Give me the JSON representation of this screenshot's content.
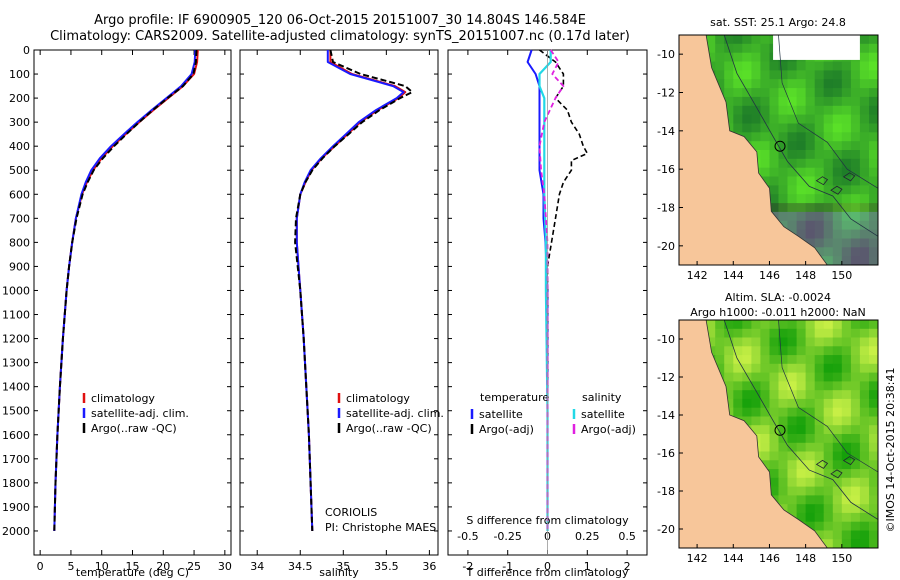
{
  "header": {
    "line1": "Argo profile: IF 6900905_120 06-Oct-2015 20151007_30 14.804S 146.584E",
    "line2": "Climatology: CARS2009. Satellite-adjusted climatology: synTS_20151007.nc (0.17d later)"
  },
  "colors": {
    "climatology": "#e01010",
    "satellite": "#1a1aff",
    "argo": "#000000",
    "sal_satellite": "#22d8e6",
    "sal_argo": "#e020e0",
    "land": "#f7c69a"
  },
  "side_text": "©IMOS 14-Oct-2015 20:38:41",
  "chart_data": [
    {
      "type": "line",
      "panel": "temperature",
      "xlabel": "temperature (deg C)",
      "ylabel": "",
      "xlim": [
        -1,
        31
      ],
      "ylim": [
        2100,
        0
      ],
      "xticks": [
        0,
        5,
        10,
        15,
        20,
        25,
        30
      ],
      "yticks": [
        0,
        100,
        200,
        300,
        400,
        500,
        600,
        700,
        800,
        900,
        1000,
        1100,
        1200,
        1300,
        1400,
        1500,
        1600,
        1700,
        1800,
        1900,
        2000
      ],
      "legend": [
        "climatology",
        "satellite-adj. clim.",
        "Argo(..raw -QC)"
      ],
      "series": [
        {
          "name": "climatology",
          "depth": [
            0,
            50,
            100,
            150,
            200,
            250,
            300,
            350,
            400,
            450,
            500,
            550,
            600,
            700,
            800,
            900,
            1000,
            1200,
            1400,
            1600,
            1800,
            2000
          ],
          "values": [
            25.6,
            25.5,
            25.0,
            23.2,
            20.8,
            18.4,
            16.1,
            13.9,
            11.8,
            10.0,
            8.6,
            7.6,
            6.8,
            5.8,
            5.2,
            4.7,
            4.3,
            3.7,
            3.2,
            2.8,
            2.5,
            2.3
          ]
        },
        {
          "name": "satellite-adj. clim.",
          "depth": [
            0,
            50,
            100,
            150,
            200,
            250,
            300,
            350,
            400,
            450,
            500,
            550,
            600,
            700,
            800,
            900,
            1000,
            1200,
            1400,
            1600,
            1800,
            2000
          ],
          "values": [
            25.2,
            25.1,
            24.6,
            22.9,
            20.5,
            18.1,
            15.8,
            13.6,
            11.5,
            9.7,
            8.3,
            7.4,
            6.7,
            5.8,
            5.2,
            4.7,
            4.3,
            3.7,
            3.2,
            2.8,
            2.5,
            2.3
          ]
        },
        {
          "name": "Argo(..raw -QC)",
          "depth": [
            0,
            50,
            100,
            150,
            200,
            250,
            300,
            350,
            400,
            450,
            500,
            550,
            600,
            700,
            800,
            900,
            1000,
            1200,
            1400,
            1600,
            1800,
            2000
          ],
          "values": [
            25.4,
            25.3,
            24.9,
            23.2,
            20.7,
            18.3,
            16.1,
            14.0,
            12.0,
            10.2,
            8.7,
            7.7,
            6.9,
            5.9,
            5.2,
            4.7,
            4.3,
            3.7,
            3.2,
            2.8,
            2.5,
            2.3
          ]
        }
      ]
    },
    {
      "type": "line",
      "panel": "salinity",
      "xlabel": "salinity",
      "ylabel": "",
      "xlim": [
        33.8,
        36.1
      ],
      "ylim": [
        2100,
        0
      ],
      "xticks": [
        34,
        34.5,
        35,
        35.5,
        36
      ],
      "legend": [
        "climatology",
        "satellite-adj. clim.",
        "Argo(..raw -QC)"
      ],
      "annotation": [
        "CORIOLIS",
        "PI: Christophe MAES"
      ],
      "series": [
        {
          "name": "climatology",
          "depth": [
            0,
            50,
            100,
            150,
            175,
            200,
            250,
            300,
            350,
            400,
            450,
            500,
            550,
            600,
            700,
            800,
            900,
            1000,
            1200,
            1400,
            1600,
            1800,
            2000
          ],
          "values": [
            34.85,
            34.85,
            35.1,
            35.6,
            35.72,
            35.64,
            35.4,
            35.2,
            35.05,
            34.9,
            34.75,
            34.63,
            34.56,
            34.5,
            34.46,
            34.46,
            34.48,
            34.5,
            34.54,
            34.57,
            34.6,
            34.62,
            34.64
          ]
        },
        {
          "name": "satellite-adj. clim.",
          "depth": [
            0,
            50,
            100,
            150,
            175,
            200,
            250,
            300,
            350,
            400,
            450,
            500,
            550,
            600,
            700,
            800,
            900,
            1000,
            1200,
            1400,
            1600,
            1800,
            2000
          ],
          "values": [
            34.82,
            34.82,
            35.08,
            35.58,
            35.7,
            35.62,
            35.38,
            35.18,
            35.03,
            34.88,
            34.74,
            34.62,
            34.55,
            34.5,
            34.46,
            34.46,
            34.48,
            34.5,
            34.54,
            34.57,
            34.6,
            34.62,
            34.64
          ]
        },
        {
          "name": "Argo(..raw -QC)",
          "depth": [
            0,
            50,
            100,
            150,
            175,
            200,
            250,
            300,
            350,
            400,
            450,
            500,
            550,
            600,
            700,
            800,
            900,
            1000,
            1200,
            1400,
            1600,
            1800,
            2000
          ],
          "values": [
            34.85,
            34.88,
            35.2,
            35.72,
            35.8,
            35.66,
            35.42,
            35.22,
            35.06,
            34.9,
            34.76,
            34.64,
            34.56,
            34.5,
            34.45,
            34.44,
            34.47,
            34.5,
            34.54,
            34.57,
            34.6,
            34.62,
            34.64
          ]
        }
      ]
    },
    {
      "type": "line",
      "panel": "difference",
      "xlabel": "T difference from climatology",
      "xlabel_top": "S difference from climatology",
      "ylabel": "",
      "xlim": [
        -2.5,
        2.5
      ],
      "ylim": [
        2100,
        0
      ],
      "xticks": [
        -2,
        -1,
        0,
        1,
        2
      ],
      "xticks_S": [
        -0.5,
        -0.25,
        0,
        0.25,
        0.5
      ],
      "s_scale": 4,
      "legend_temperature": {
        "title": "temperature",
        "items": [
          "satellite",
          "Argo(-adj)"
        ]
      },
      "legend_salinity": {
        "title": "salinity",
        "items": [
          "satellite",
          "Argo(-adj)"
        ]
      },
      "series": [
        {
          "name": "T satellite",
          "depth": [
            0,
            50,
            100,
            150,
            200,
            300,
            400,
            500,
            600,
            700,
            800,
            1000,
            1500,
            2000
          ],
          "values": [
            -0.4,
            -0.5,
            -0.3,
            -0.2,
            -0.2,
            -0.2,
            -0.2,
            -0.2,
            -0.1,
            -0.1,
            -0.05,
            0,
            0,
            0
          ]
        },
        {
          "name": "T Argo(-adj)",
          "depth": [
            0,
            50,
            100,
            150,
            200,
            250,
            300,
            350,
            400,
            430,
            460,
            500,
            550,
            600,
            700,
            800,
            900,
            1000,
            1500,
            2000
          ],
          "values": [
            -0.2,
            0.2,
            0.4,
            0.4,
            0.2,
            0.5,
            0.6,
            0.8,
            0.9,
            1.0,
            0.6,
            0.6,
            0.4,
            0.3,
            0.2,
            0.1,
            0,
            0,
            0,
            0
          ]
        },
        {
          "name": "S satellite",
          "depth": [
            0,
            50,
            100,
            150,
            200,
            300,
            400,
            500,
            600,
            800,
            1000,
            1500,
            2000
          ],
          "values": [
            0.02,
            0.02,
            -0.05,
            -0.05,
            -0.02,
            -0.02,
            -0.02,
            -0.02,
            -0.02,
            -0.01,
            -0.01,
            0,
            0
          ]
        },
        {
          "name": "S Argo(-adj)",
          "depth": [
            0,
            50,
            100,
            150,
            200,
            300,
            400,
            500,
            600,
            700,
            800,
            1000,
            1500,
            2000
          ],
          "values": [
            0.02,
            0.07,
            0.03,
            0.1,
            0.05,
            -0.02,
            -0.05,
            -0.04,
            -0.02,
            -0.01,
            0,
            0,
            0,
            0
          ]
        }
      ]
    },
    {
      "type": "heatmap",
      "panel": "sst_map",
      "title": "sat. SST: 25.1  Argo: 24.8",
      "xticks": [
        142,
        144,
        146,
        148,
        150
      ],
      "yticks": [
        -10,
        -12,
        -14,
        -16,
        -18,
        -20
      ],
      "xlim": [
        141,
        152
      ],
      "ylim": [
        -21,
        -9
      ],
      "marker": {
        "lon": 146.584,
        "lat": -14.804
      }
    },
    {
      "type": "heatmap",
      "panel": "sla_map",
      "title": "Altim. SLA: -0.0024",
      "subtitle": "Argo h1000: -0.011 h2000: NaN",
      "xticks": [
        142,
        144,
        146,
        148,
        150
      ],
      "yticks": [
        -10,
        -12,
        -14,
        -16,
        -18,
        -20
      ],
      "xlim": [
        141,
        152
      ],
      "ylim": [
        -21,
        -9
      ],
      "marker": {
        "lon": 146.584,
        "lat": -14.804
      }
    }
  ]
}
